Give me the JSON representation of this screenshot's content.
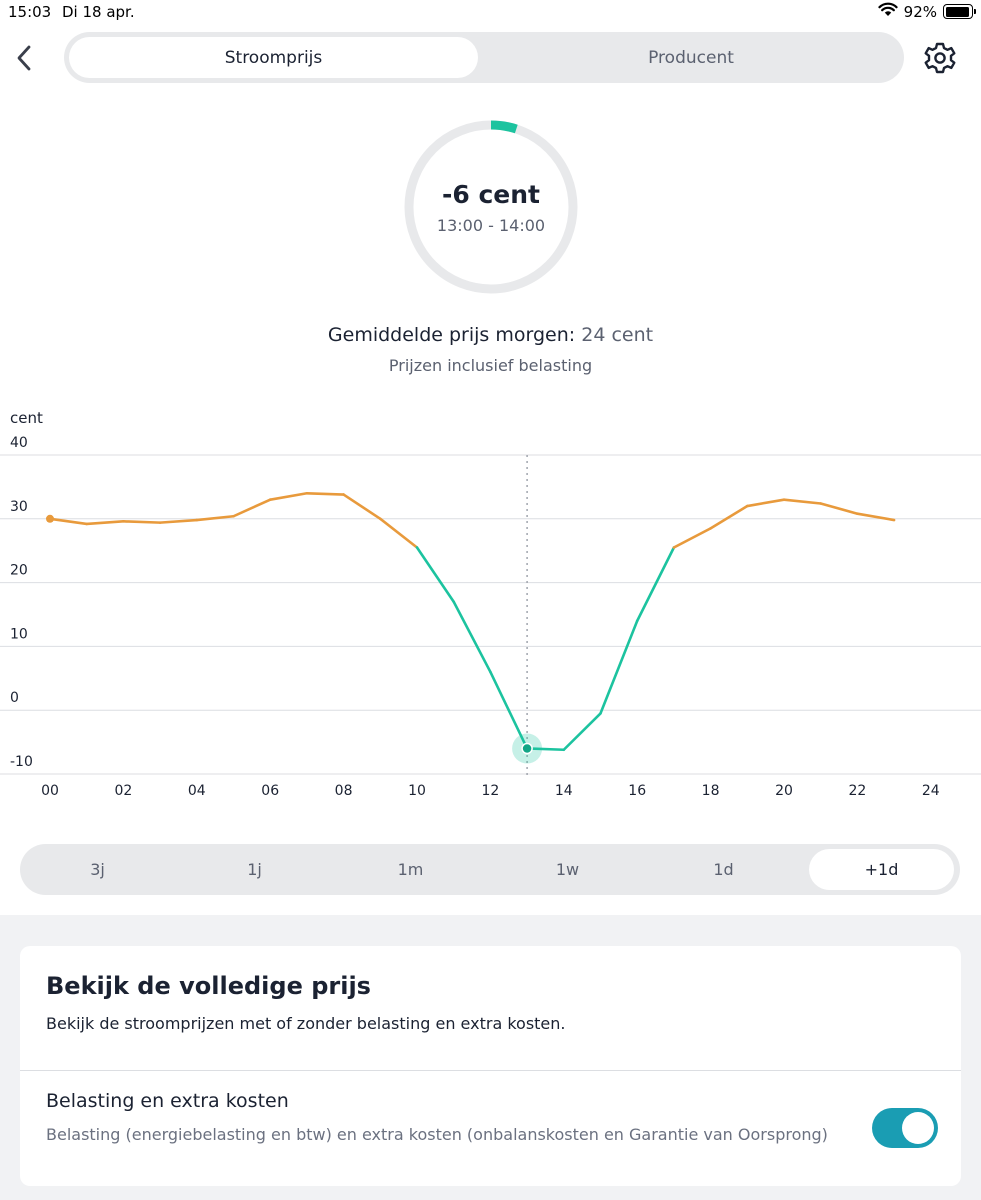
{
  "status_bar": {
    "time": "15:03",
    "date": "Di 18 apr.",
    "battery": "92%",
    "battery_level": 0.92
  },
  "nav": {
    "tabs": [
      {
        "label": "Stroomprijs",
        "active": true
      },
      {
        "label": "Producent",
        "active": false
      }
    ]
  },
  "current": {
    "value": "-6 cent",
    "time": "13:00 - 14:00"
  },
  "summary": {
    "avg_label": "Gemiddelde prijs morgen:",
    "avg_value": "24 cent",
    "tax_note": "Prijzen inclusief belasting"
  },
  "chart_data": {
    "type": "line",
    "ylabel": "cent",
    "ylim": [
      -10,
      40
    ],
    "yticks": [
      40,
      30,
      20,
      10,
      0,
      -10
    ],
    "xlim": [
      0,
      24
    ],
    "xticks": [
      "00",
      "02",
      "04",
      "06",
      "08",
      "10",
      "12",
      "14",
      "16",
      "18",
      "20",
      "22",
      "24"
    ],
    "x": [
      0,
      1,
      2,
      3,
      4,
      5,
      6,
      7,
      8,
      9,
      10,
      11,
      12,
      13,
      14,
      15,
      16,
      17,
      18,
      19,
      20,
      21,
      22,
      23
    ],
    "values": [
      30,
      29.2,
      29.6,
      29.4,
      29.8,
      30.4,
      33,
      34,
      33.8,
      30,
      25.5,
      17,
      6,
      -6,
      -6.2,
      -0.5,
      14,
      25.5,
      28.5,
      32,
      33,
      32.4,
      30.8,
      29.8
    ],
    "low_threshold": 25.5,
    "selected_hour": 13,
    "grid": true,
    "colors": {
      "high": "#e89a3c",
      "low": "#1cc39f",
      "grid": "#dcdee2"
    }
  },
  "ranges": [
    {
      "label": "3j",
      "active": false
    },
    {
      "label": "1j",
      "active": false
    },
    {
      "label": "1m",
      "active": false
    },
    {
      "label": "1w",
      "active": false
    },
    {
      "label": "1d",
      "active": false
    },
    {
      "label": "+1d",
      "active": true
    }
  ],
  "card": {
    "title": "Bekijk de volledige prijs",
    "subtitle": "Bekijk de stroomprijzen met of zonder belasting en extra kosten.",
    "row_title": "Belasting en extra kosten",
    "row_desc": "Belasting (energiebelasting en btw) en extra kosten (onbalanskosten en Garantie van Oorsprong)",
    "toggle_on": true
  },
  "icons": {
    "back": "chevron-left-icon",
    "settings": "gear-icon",
    "wifi": "wifi-icon",
    "battery": "battery-icon"
  },
  "colors": {
    "accent": "#1cc39f",
    "toggle": "#1a9db3",
    "ring_track": "#e8e9eb"
  }
}
